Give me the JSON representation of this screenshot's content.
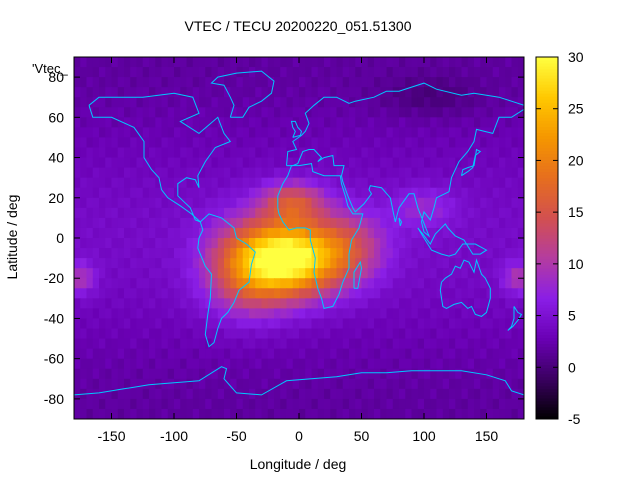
{
  "chart_data": {
    "type": "heatmap",
    "title": "VTEC / TECU 20200220_051.51300",
    "xlabel": "Longitude / deg",
    "ylabel": "Latitude / deg",
    "legend_key": "'Vtec_",
    "xlim": [
      -180,
      180
    ],
    "ylim": [
      -90,
      90
    ],
    "x_ticks": [
      -150,
      -100,
      -50,
      0,
      50,
      100,
      150
    ],
    "y_ticks": [
      -80,
      -60,
      -40,
      -20,
      0,
      20,
      40,
      60,
      80
    ],
    "colorbar": {
      "range": [
        -5,
        30
      ],
      "ticks": [
        -5,
        0,
        5,
        10,
        15,
        20,
        25,
        30
      ],
      "palette": [
        "#000000",
        "#3a0060",
        "#6a00b4",
        "#8a1ee6",
        "#b43ca0",
        "#d25050",
        "#e66e1e",
        "#f59600",
        "#ffc800",
        "#ffff40"
      ]
    },
    "field": {
      "background": 3,
      "peaks": [
        {
          "lon": -5,
          "lat": -10,
          "amp": 24,
          "sx": 38,
          "sy": 18
        },
        {
          "lon": -40,
          "lat": -15,
          "amp": 13,
          "sx": 35,
          "sy": 22
        },
        {
          "lon": -5,
          "lat": 18,
          "amp": 10,
          "sx": 25,
          "sy": 10
        },
        {
          "lon": 40,
          "lat": -5,
          "amp": 8,
          "sx": 30,
          "sy": 18
        },
        {
          "lon": -175,
          "lat": -20,
          "amp": 6,
          "sx": 12,
          "sy": 8
        },
        {
          "lon": 175,
          "lat": -20,
          "amp": 6,
          "sx": 12,
          "sy": 8
        },
        {
          "lon": 100,
          "lat": 15,
          "amp": 4,
          "sx": 25,
          "sy": 10
        }
      ],
      "low_patch": {
        "lon": 105,
        "lat": 70,
        "amp": -2,
        "sx": 40,
        "sy": 10
      }
    },
    "coastline_color": "#00c8ff"
  }
}
